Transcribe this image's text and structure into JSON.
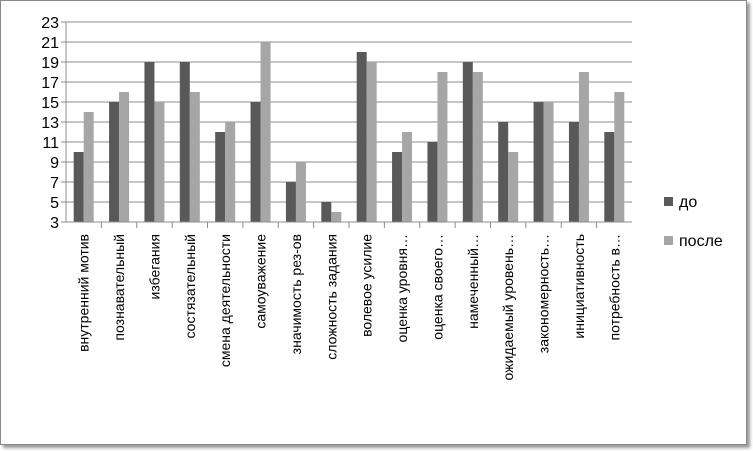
{
  "chart_data": {
    "type": "bar",
    "title": "",
    "xlabel": "",
    "ylabel": "",
    "ylim": [
      3,
      23
    ],
    "yticks": [
      3,
      5,
      7,
      9,
      11,
      13,
      15,
      17,
      19,
      21,
      23
    ],
    "grid": true,
    "legend_position": "right",
    "categories": [
      "внутренний мотив",
      "познавательный",
      "избегания",
      "состязательный",
      "смена деятельности",
      "самоуважение",
      "значимость рез-ов",
      "сложность задания",
      "волевое усилие",
      "оценка уровня…",
      "оценка своего…",
      "намеченный…",
      "ожидаемый уровень…",
      "закономерность…",
      "инициативность",
      "потребность в…"
    ],
    "series": [
      {
        "name": "до",
        "color": "#595959",
        "values": [
          10,
          15,
          19,
          19,
          12,
          15,
          7,
          5,
          20,
          10,
          11,
          19,
          13,
          15,
          13,
          12
        ]
      },
      {
        "name": "после",
        "color": "#a6a6a6",
        "values": [
          14,
          16,
          15,
          16,
          13,
          21,
          9,
          4,
          19,
          12,
          18,
          18,
          10,
          15,
          18,
          16
        ]
      }
    ]
  }
}
